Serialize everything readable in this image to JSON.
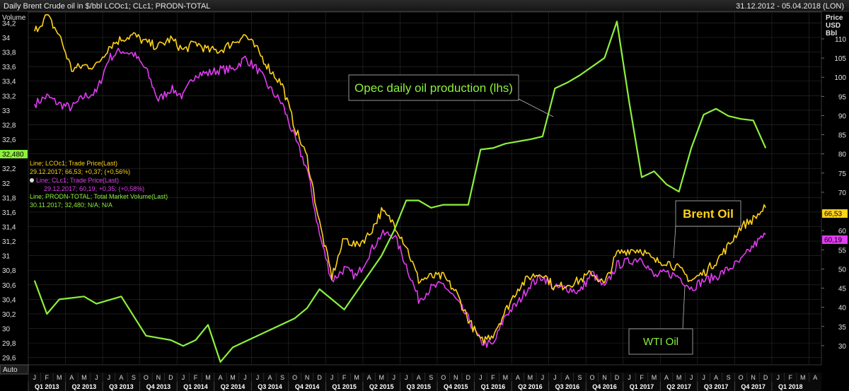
{
  "header": {
    "title": "Daily Brent Crude oil in $/bbl LCOc1; CLc1; PRODN-TOTAL",
    "date_range": "31.12.2012 - 05.04.2018 (LON)"
  },
  "axes": {
    "left_title": "Volume",
    "right_title_lines": [
      "Price",
      "USD",
      "Bbl"
    ],
    "auto_label": "Auto"
  },
  "legend": {
    "line1": "Line; LCOc1; Trade Price(Last)",
    "line2": "29.12.2017; 66,53; +0,37; (+0,56%)",
    "line3": "Line; CLc1; Trade Price(Last)",
    "line4": "29.12.2017; 60,19; +0,35; (+0,58%)",
    "line5": "Line; PRODN-TOTAL; Total Market Volume(Last)",
    "line6": "30.11.2017; 32,480; N/A; N/A"
  },
  "badges": {
    "opec_last": "32,480",
    "brent_last": "66,53",
    "wti_last": "60,19"
  },
  "annotations": {
    "opec": "Opec daily oil production (lhs)",
    "brent": "Brent Oil",
    "wti": "WTI Oil"
  },
  "colors": {
    "brent": "#ffd21a",
    "wti": "#e03cf0",
    "opec": "#8cf03c",
    "grid": "#2c2c2c",
    "text": "#e0e0e0"
  },
  "chart_data": {
    "type": "line",
    "title": "Daily Brent Crude oil in $/bbl LCOc1; CLc1; PRODN-TOTAL",
    "x_range": [
      "2013-01",
      "2018-04"
    ],
    "left_axis": {
      "label": "Volume",
      "ylim": [
        29.5,
        34.35
      ],
      "ticks": [
        "29,6",
        "29,8",
        "30",
        "30,2",
        "30,4",
        "30,6",
        "30,8",
        "31",
        "31,2",
        "31,4",
        "31,6",
        "31,8",
        "32",
        "32,2",
        "32,4",
        "32,6",
        "32,8",
        "33",
        "33,2",
        "33,4",
        "33,6",
        "33,8",
        "34",
        "34,2"
      ]
    },
    "right_axis": {
      "label": "Price USD Bbl",
      "ylim": [
        25,
        117
      ],
      "ticks": [
        "30",
        "35",
        "40",
        "45",
        "50",
        "55",
        "60",
        "65",
        "70",
        "75",
        "80",
        "85",
        "90",
        "95",
        "100",
        "105",
        "110"
      ]
    },
    "month_labels": [
      "J",
      "F",
      "M",
      "A",
      "M",
      "J",
      "J",
      "A",
      "S",
      "O",
      "N",
      "D",
      "J",
      "F",
      "M",
      "A",
      "M",
      "J",
      "J",
      "A",
      "S",
      "O",
      "N",
      "D",
      "J",
      "F",
      "M",
      "A",
      "M",
      "J",
      "J",
      "A",
      "S",
      "O",
      "N",
      "D",
      "J",
      "F",
      "M",
      "A",
      "M",
      "J",
      "J",
      "A",
      "S",
      "O",
      "N",
      "D",
      "J",
      "F",
      "M",
      "A",
      "M",
      "J",
      "J",
      "A",
      "S",
      "O",
      "N",
      "D",
      "J",
      "F",
      "M",
      "A"
    ],
    "quarter_labels": [
      "Q1 2013",
      "Q2 2013",
      "Q3 2013",
      "Q4 2013",
      "Q1 2014",
      "Q2 2014",
      "Q3 2014",
      "Q4 2014",
      "Q1 2015",
      "Q2 2015",
      "Q3 2015",
      "Q4 2015",
      "Q1 2016",
      "Q2 2016",
      "Q3 2016",
      "Q4 2016",
      "Q1 2017",
      "Q2 2017",
      "Q3 2017",
      "Q4 2017",
      "Q1 2018"
    ],
    "series": [
      {
        "name": "Brent (LCOc1)",
        "axis": "right",
        "last": 66.53,
        "values": [
          112,
          116,
          111,
          102,
          103,
          103,
          108,
          110,
          111,
          109,
          108,
          110,
          107,
          109,
          107,
          107,
          109,
          111,
          107,
          102,
          98,
          87,
          79,
          62,
          48,
          58,
          56,
          59,
          65,
          62,
          56,
          47,
          48,
          48,
          44,
          37,
          31,
          33,
          39,
          45,
          48,
          49,
          45,
          46,
          47,
          49,
          46,
          54,
          55,
          55,
          52,
          52,
          50,
          47,
          49,
          52,
          56,
          61,
          63,
          66
        ]
      },
      {
        "name": "WTI (CLc1)",
        "axis": "right",
        "last": 60.19,
        "values": [
          93,
          95,
          93,
          92,
          95,
          96,
          105,
          107,
          106,
          102,
          94,
          97,
          95,
          101,
          101,
          102,
          102,
          105,
          102,
          97,
          93,
          84,
          76,
          59,
          47,
          50,
          48,
          54,
          59,
          59,
          51,
          42,
          45,
          46,
          42,
          37,
          31,
          30,
          38,
          41,
          46,
          48,
          45,
          45,
          44,
          49,
          45,
          51,
          52,
          53,
          48,
          49,
          48,
          45,
          47,
          48,
          50,
          52,
          56,
          59
        ]
      },
      {
        "name": "OPEC total production (PRODN-TOTAL)",
        "axis": "left",
        "last": 32.48,
        "points": [
          [
            "2013-01",
            30.66
          ],
          [
            "2013-02",
            30.2
          ],
          [
            "2013-03",
            30.4
          ],
          [
            "2013-05",
            30.44
          ],
          [
            "2013-06",
            30.34
          ],
          [
            "2013-08",
            30.44
          ],
          [
            "2013-10",
            29.9
          ],
          [
            "2013-12",
            29.84
          ],
          [
            "2014-01",
            29.76
          ],
          [
            "2014-02",
            29.84
          ],
          [
            "2014-03",
            30.05
          ],
          [
            "2014-04",
            29.54
          ],
          [
            "2014-05",
            29.74
          ],
          [
            "2014-08",
            29.98
          ],
          [
            "2014-10",
            30.14
          ],
          [
            "2014-11",
            30.28
          ],
          [
            "2014-12",
            30.54
          ],
          [
            "2015-01",
            30.4
          ],
          [
            "2015-02",
            30.26
          ],
          [
            "2015-05",
            31.0
          ],
          [
            "2015-06",
            31.34
          ],
          [
            "2015-07",
            31.76
          ],
          [
            "2015-08",
            31.76
          ],
          [
            "2015-09",
            31.66
          ],
          [
            "2015-10",
            31.7
          ],
          [
            "2015-11",
            31.7
          ],
          [
            "2015-12",
            31.7
          ],
          [
            "2016-01",
            32.46
          ],
          [
            "2016-02",
            32.48
          ],
          [
            "2016-03",
            32.54
          ],
          [
            "2016-05",
            32.6
          ],
          [
            "2016-06",
            32.64
          ],
          [
            "2016-07",
            33.3
          ],
          [
            "2016-08",
            33.38
          ],
          [
            "2016-09",
            33.48
          ],
          [
            "2016-10",
            33.6
          ],
          [
            "2016-11",
            33.72
          ],
          [
            "2016-12",
            34.22
          ],
          [
            "2017-01",
            33.1
          ],
          [
            "2017-02",
            32.08
          ],
          [
            "2017-03",
            32.16
          ],
          [
            "2017-04",
            31.98
          ],
          [
            "2017-05",
            31.88
          ],
          [
            "2017-06",
            32.48
          ],
          [
            "2017-07",
            32.94
          ],
          [
            "2017-08",
            33.02
          ],
          [
            "2017-09",
            32.92
          ],
          [
            "2017-10",
            32.88
          ],
          [
            "2017-11",
            32.86
          ],
          [
            "2017-12",
            32.48
          ]
        ]
      }
    ]
  }
}
